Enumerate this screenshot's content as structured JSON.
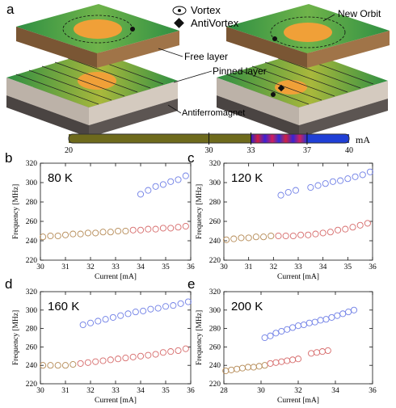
{
  "panel_a": {
    "letter": "a",
    "legend": {
      "vortex": "Vortex",
      "antivortex": "AntiVortex"
    },
    "labels": {
      "new_orbit": "New Orbit",
      "free_layer": "Free layer",
      "pinned_layer": "Pinned layer",
      "antiferromagnet": "Antiferromagnet"
    },
    "current_bar": {
      "unit": "mA",
      "ticks": [
        "20",
        "30",
        "33",
        "37",
        "40"
      ],
      "range": [
        20,
        40
      ],
      "segments": [
        {
          "from": 20,
          "to": 33,
          "color": "#6e6a1c"
        },
        {
          "from": 33,
          "to": 37,
          "color": "#c02070"
        },
        {
          "from": 37,
          "to": 40,
          "color": "#1f3fd6"
        }
      ]
    }
  },
  "colors": {
    "high_mode": "#6f7fe6",
    "low_mode": "#d66a6a",
    "early_mode": "#b58a55"
  },
  "chart_data": [
    {
      "type": "scatter",
      "letter": "b",
      "annotation": "80 K",
      "xlabel": "Current [mA]",
      "ylabel": "Frequency [MHz]",
      "xlim": [
        30,
        36
      ],
      "ylim": [
        220,
        320
      ],
      "xticks": [
        "30",
        "31",
        "32",
        "33",
        "34",
        "35",
        "36"
      ],
      "yticks": [
        "220",
        "240",
        "260",
        "280",
        "300",
        "320"
      ],
      "series": [
        {
          "color": "#b58a55",
          "x": [
            30.1,
            30.4,
            30.7,
            31.0,
            31.3,
            31.6,
            31.9,
            32.2,
            32.5,
            32.8,
            33.1,
            33.4
          ],
          "y": [
            244,
            245,
            245,
            246,
            247,
            247,
            248,
            248,
            249,
            249,
            250,
            250
          ]
        },
        {
          "color": "#d66a6a",
          "x": [
            33.7,
            34.0,
            34.3,
            34.6,
            34.9,
            35.2,
            35.5,
            35.8
          ],
          "y": [
            251,
            251,
            252,
            252,
            253,
            253,
            254,
            255
          ]
        },
        {
          "color": "#6f7fe6",
          "x": [
            34.0,
            34.3,
            34.6,
            34.9,
            35.2,
            35.5,
            35.8
          ],
          "y": [
            288,
            292,
            296,
            298,
            301,
            303,
            307
          ]
        }
      ]
    },
    {
      "type": "scatter",
      "letter": "c",
      "annotation": "120 K",
      "xlabel": "Current [mA]",
      "ylabel": "Frequency [MHz]",
      "xlim": [
        30,
        36
      ],
      "ylim": [
        220,
        320
      ],
      "xticks": [
        "30",
        "31",
        "32",
        "33",
        "34",
        "35",
        "36"
      ],
      "yticks": [
        "220",
        "240",
        "260",
        "280",
        "300",
        "320"
      ],
      "series": [
        {
          "color": "#b58a55",
          "x": [
            30.1,
            30.4,
            30.7,
            31.0,
            31.3,
            31.6,
            31.9
          ],
          "y": [
            241,
            242,
            243,
            243,
            244,
            244,
            245
          ]
        },
        {
          "color": "#d66a6a",
          "x": [
            32.2,
            32.5,
            32.8,
            33.1,
            33.4,
            33.7,
            34.0,
            34.3,
            34.6,
            34.9,
            35.2,
            35.5,
            35.8
          ],
          "y": [
            245,
            245,
            245,
            246,
            246,
            247,
            248,
            249,
            251,
            252,
            254,
            256,
            258
          ]
        },
        {
          "color": "#6f7fe6",
          "x": [
            32.3,
            32.6,
            32.9,
            33.5,
            33.8,
            34.1,
            34.4,
            34.7,
            35.0,
            35.3,
            35.6,
            35.9
          ],
          "y": [
            287,
            290,
            292,
            295,
            297,
            299,
            301,
            302,
            304,
            306,
            308,
            311
          ]
        }
      ]
    },
    {
      "type": "scatter",
      "letter": "d",
      "annotation": "160 K",
      "xlabel": "Current [mA]",
      "ylabel": "Frequency [MHz]",
      "xlim": [
        30,
        36
      ],
      "ylim": [
        220,
        320
      ],
      "xticks": [
        "30",
        "31",
        "32",
        "33",
        "34",
        "35",
        "36"
      ],
      "yticks": [
        "220",
        "240",
        "260",
        "280",
        "300",
        "320"
      ],
      "series": [
        {
          "color": "#b58a55",
          "x": [
            30.1,
            30.4,
            30.7,
            31.0,
            31.3
          ],
          "y": [
            240,
            240,
            240,
            240,
            241
          ]
        },
        {
          "color": "#d66a6a",
          "x": [
            31.6,
            31.9,
            32.2,
            32.5,
            32.8,
            33.1,
            33.4,
            33.7,
            34.0,
            34.3,
            34.6,
            34.9,
            35.2,
            35.5,
            35.8
          ],
          "y": [
            242,
            243,
            244,
            245,
            246,
            247,
            248,
            249,
            250,
            251,
            252,
            254,
            255,
            256,
            258
          ]
        },
        {
          "color": "#6f7fe6",
          "x": [
            31.7,
            32.0,
            32.3,
            32.6,
            32.9,
            33.2,
            33.5,
            33.8,
            34.1,
            34.4,
            34.7,
            35.0,
            35.3,
            35.6,
            35.9
          ],
          "y": [
            284,
            286,
            288,
            290,
            292,
            294,
            296,
            298,
            299,
            301,
            302,
            304,
            305,
            307,
            309
          ]
        }
      ]
    },
    {
      "type": "scatter",
      "letter": "e",
      "annotation": "200 K",
      "xlabel": "Current [mA]",
      "ylabel": "Frequency [MHz]",
      "xlim": [
        28,
        36
      ],
      "ylim": [
        220,
        320
      ],
      "xticks": [
        "28",
        "30",
        "32",
        "34",
        "36"
      ],
      "yticks": [
        "220",
        "240",
        "260",
        "280",
        "300",
        "320"
      ],
      "series": [
        {
          "color": "#b58a55",
          "x": [
            28.1,
            28.4,
            28.7,
            29.0,
            29.3,
            29.6,
            29.9,
            30.2
          ],
          "y": [
            234,
            235,
            236,
            237,
            238,
            238,
            239,
            240
          ]
        },
        {
          "color": "#d66a6a",
          "x": [
            30.5,
            30.8,
            31.1,
            31.4,
            31.7,
            32.0,
            32.7,
            33.0,
            33.3,
            33.6
          ],
          "y": [
            242,
            243,
            244,
            245,
            246,
            247,
            253,
            254,
            255,
            256
          ]
        },
        {
          "color": "#6f7fe6",
          "x": [
            30.2,
            30.5,
            30.8,
            31.1,
            31.4,
            31.7,
            32.0,
            32.3,
            32.6,
            32.9,
            33.2,
            33.5,
            33.8,
            34.1,
            34.4,
            34.7,
            35.0
          ],
          "y": [
            270,
            272,
            275,
            277,
            279,
            281,
            283,
            284,
            286,
            287,
            289,
            290,
            292,
            294,
            296,
            298,
            300
          ]
        }
      ]
    }
  ]
}
